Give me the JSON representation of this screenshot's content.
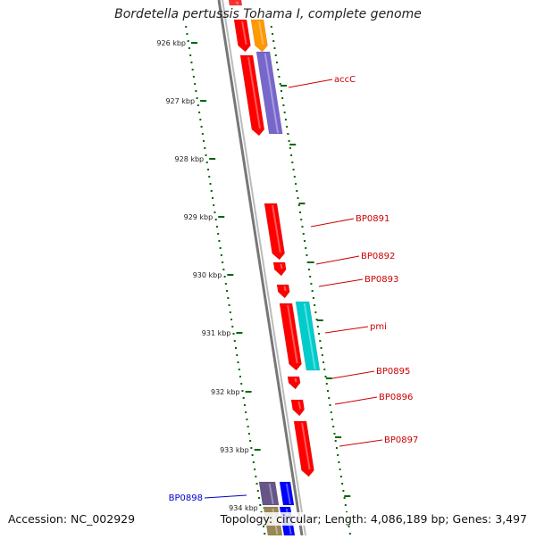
{
  "title": "Bordetella pertussis Tohama I, complete genome",
  "footer": {
    "accession": "Accession: NC_002929",
    "summary": "Topology: circular; Length: 4,086,189 bp; Genes: 3,497"
  },
  "ruler": {
    "ticks": [
      "926 kbp",
      "927 kbp",
      "928 kbp",
      "929 kbp",
      "930 kbp",
      "931 kbp",
      "932 kbp",
      "933 kbp",
      "934 kbp"
    ]
  },
  "colors": {
    "cds_forward": "#ff0000",
    "cds_orange": "#ff9900",
    "cds_purple": "#7766cc",
    "cds_cyan": "#00cccc",
    "cds_reverse": "#0000ff",
    "ruler_tick": "#006600",
    "backbone": "#888888",
    "label_forward": "#cc0000",
    "label_reverse": "#0000cc"
  },
  "gene_labels": [
    {
      "name": "accC",
      "strand": "forward"
    },
    {
      "name": "BP0891",
      "strand": "forward"
    },
    {
      "name": "BP0892",
      "strand": "forward"
    },
    {
      "name": "BP0893",
      "strand": "forward"
    },
    {
      "name": "pmi",
      "strand": "forward"
    },
    {
      "name": "BP0895",
      "strand": "forward"
    },
    {
      "name": "BP0896",
      "strand": "forward"
    },
    {
      "name": "BP0897",
      "strand": "forward"
    },
    {
      "name": "BP0898",
      "strand": "reverse"
    }
  ]
}
